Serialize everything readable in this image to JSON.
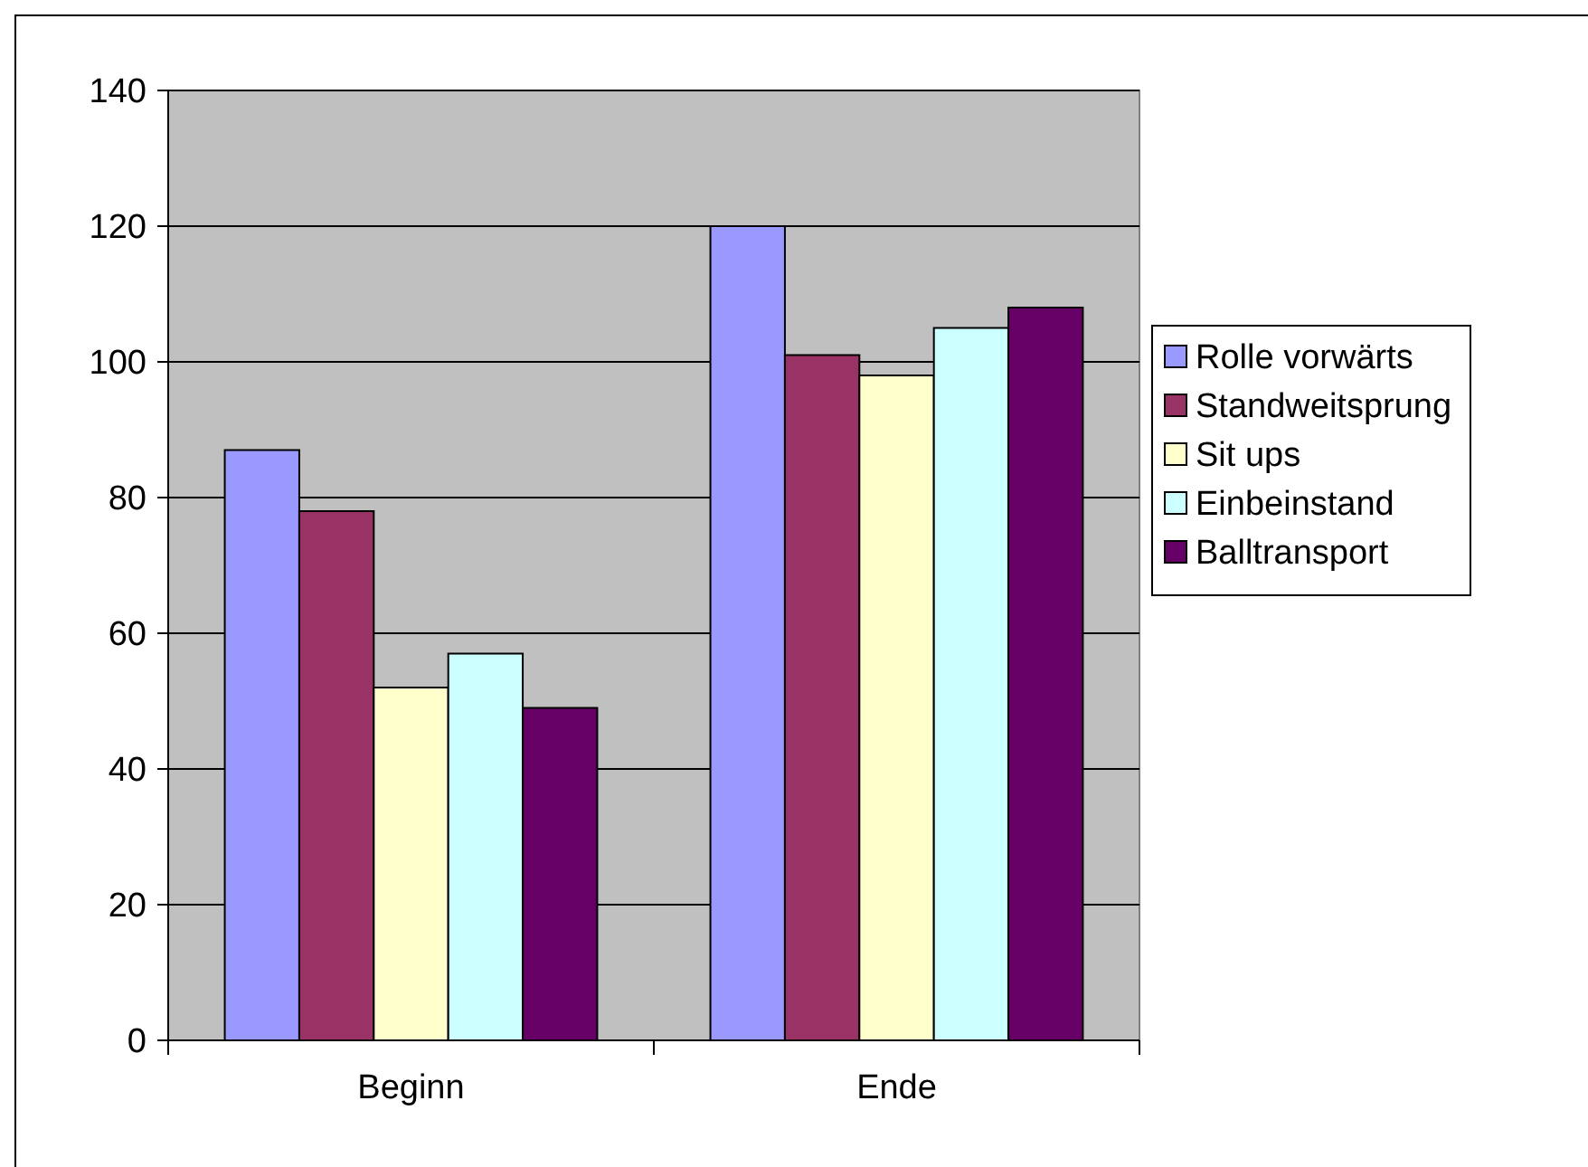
{
  "chart_data": {
    "type": "bar",
    "categories": [
      "Beginn",
      "Ende"
    ],
    "series": [
      {
        "name": "Rolle vorwärts",
        "color": "#9999ff",
        "values": [
          87,
          120
        ]
      },
      {
        "name": "Standweitsprung",
        "color": "#993366",
        "values": [
          78,
          101
        ]
      },
      {
        "name": "Sit ups",
        "color": "#ffffcc",
        "values": [
          52,
          98
        ]
      },
      {
        "name": "Einbeinstand",
        "color": "#ccffff",
        "values": [
          57,
          105
        ]
      },
      {
        "name": "Balltransport",
        "color": "#660066",
        "values": [
          49,
          108
        ]
      }
    ],
    "ylim": [
      0,
      140
    ],
    "yticks": [
      0,
      20,
      40,
      60,
      80,
      100,
      120,
      140
    ],
    "grid": "y",
    "legend": "right"
  }
}
